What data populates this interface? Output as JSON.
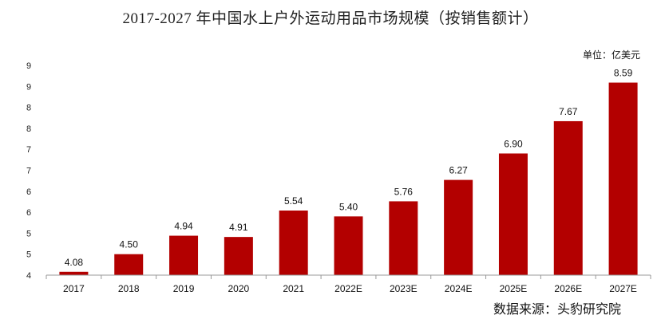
{
  "chart_data": {
    "type": "bar",
    "title": "2017-2027 年中国水上户外运动用品市场规模（按销售额计）",
    "unit_label": "单位：亿美元",
    "source": "数据来源：头豹研究院",
    "categories": [
      "2017",
      "2018",
      "2019",
      "2020",
      "2021",
      "2022E",
      "2023E",
      "2024E",
      "2025E",
      "2026E",
      "2027E"
    ],
    "values": [
      4.08,
      4.5,
      4.94,
      4.91,
      5.54,
      5.4,
      5.76,
      6.27,
      6.9,
      7.67,
      8.59
    ],
    "value_labels": [
      "4.08",
      "4.50",
      "4.94",
      "4.91",
      "5.54",
      "5.40",
      "5.76",
      "6.27",
      "6.90",
      "7.67",
      "8.59"
    ],
    "y_tick_labels": [
      "4",
      "5",
      "5",
      "6",
      "6",
      "7",
      "7",
      "8",
      "8",
      "9",
      "9"
    ],
    "ylim": [
      4,
      9
    ],
    "bar_color": "#b30000",
    "grid": false
  }
}
